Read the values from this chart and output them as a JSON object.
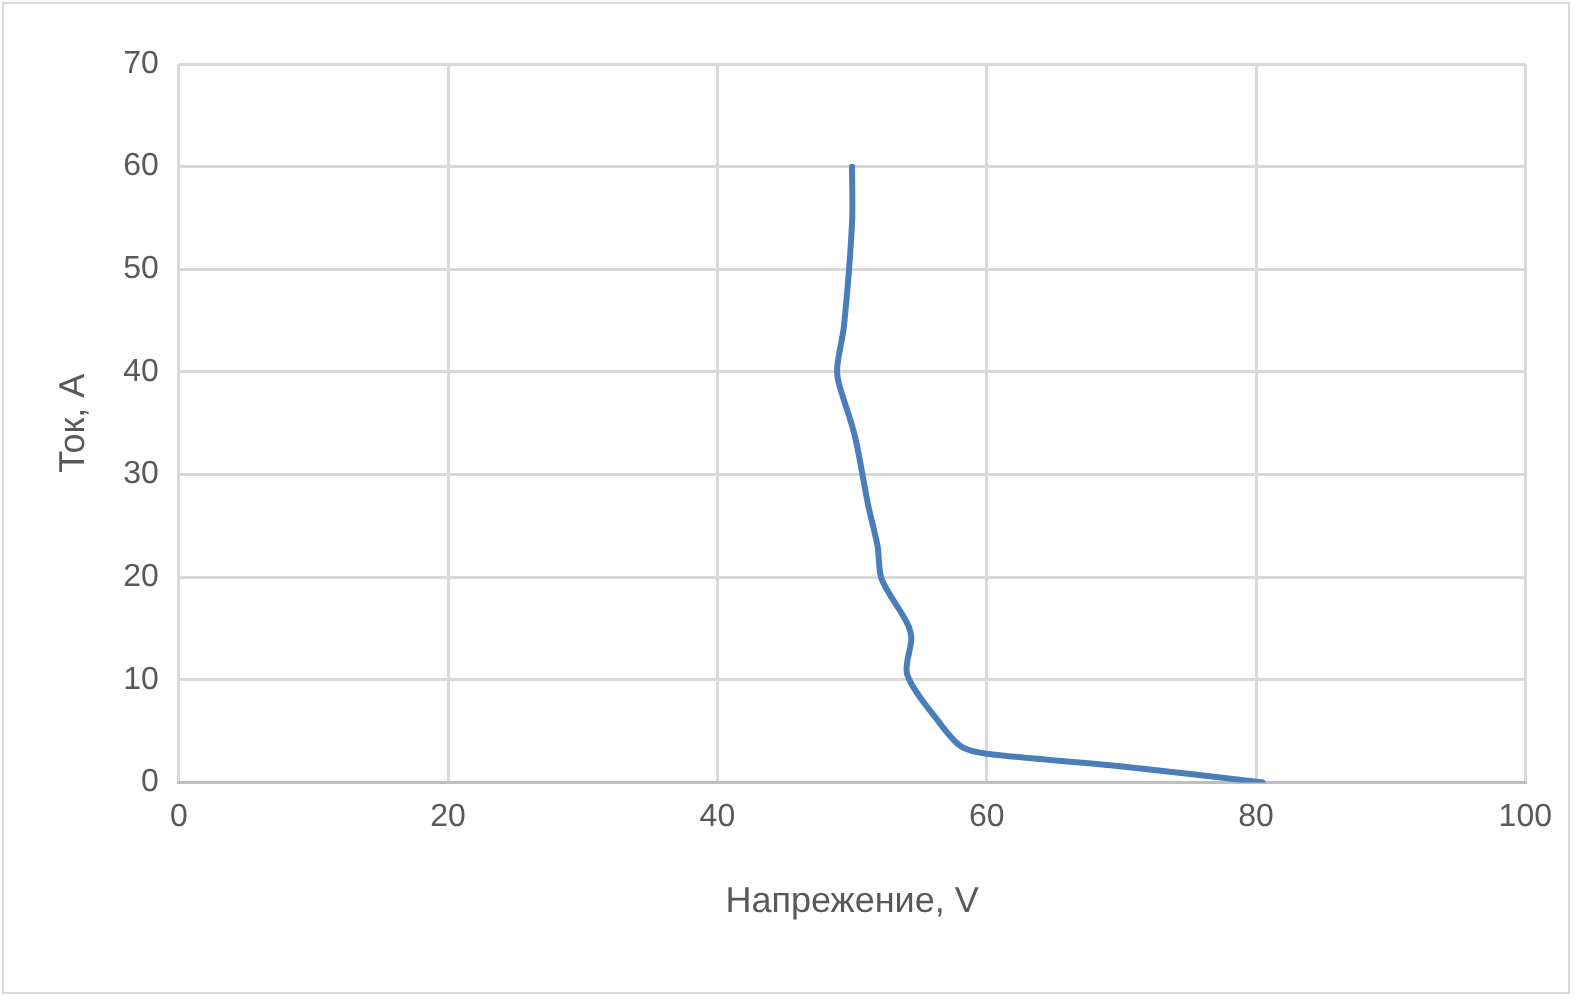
{
  "chart_data": {
    "type": "line",
    "xlabel": "Напрежение, V",
    "ylabel": "Ток, A",
    "x": [
      80.5,
      70.4,
      60,
      58.1,
      56.5,
      54.1,
      54.4,
      54.1,
      52.2,
      51.9,
      51.2,
      50.2,
      49,
      48.9,
      49.4,
      50,
      50
    ],
    "series": [
      {
        "color": "#4a7ebb",
        "values": [
          0,
          1.5,
          2.8,
          3.5,
          5.8,
          10.5,
          14,
          15.5,
          19.8,
          23,
          27,
          33.8,
          39,
          40.5,
          44.5,
          54.5,
          60
        ]
      }
    ],
    "xlim": [
      0,
      100
    ],
    "xticks": [
      0,
      20,
      40,
      60,
      80,
      100
    ],
    "ylim": [
      0,
      70
    ],
    "yticks": [
      0,
      10,
      20,
      30,
      40,
      50,
      60,
      70
    ],
    "grid": true,
    "legend": false,
    "marker": "none",
    "line_style": "solid"
  }
}
